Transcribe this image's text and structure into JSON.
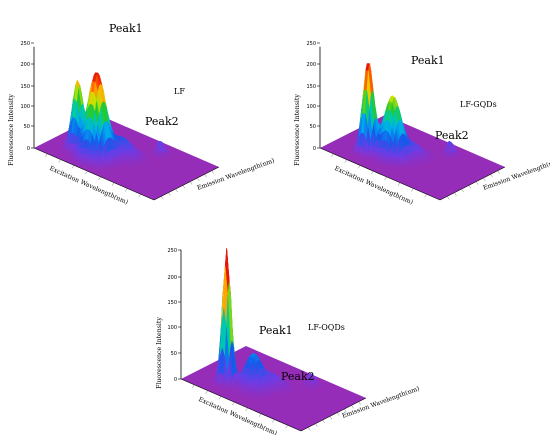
{
  "chart_data": [
    {
      "type": "surface3d",
      "title": "LF",
      "zlabel": "Fluorescence Intensity",
      "xlabel": "Excitation Wavelength(nm)",
      "ylabel": "Emission Wavelength(nm)",
      "zlim": [
        0,
        250
      ],
      "zticks": [
        "0",
        "50",
        "100",
        "150",
        "200",
        "250"
      ],
      "annotations": [
        "Peak1",
        "Peak2"
      ],
      "peaks": [
        {
          "u": 0.36,
          "v": 0.3,
          "z": 210,
          "su": 0.06,
          "sv": 0.09
        },
        {
          "u": 0.2,
          "v": 0.3,
          "z": 165,
          "su": 0.035,
          "sv": 0.05
        },
        {
          "u": 0.46,
          "v": 0.52,
          "z": 40,
          "su": 0.07,
          "sv": 0.08
        },
        {
          "u": 0.62,
          "v": 0.8,
          "z": 35,
          "su": 0.02,
          "sv": 0.04
        }
      ]
    },
    {
      "type": "surface3d",
      "title": "LF-GQDs",
      "zlabel": "Fluorescence Intensity",
      "xlabel": "Excitation Wavelength(nm)",
      "ylabel": "Emission Wavelength(nm)",
      "zlim": [
        0,
        250
      ],
      "zticks": [
        "0",
        "50",
        "100",
        "150",
        "200",
        "250"
      ],
      "annotations": [
        "Peak1",
        "Peak2"
      ],
      "peaks": [
        {
          "u": 0.25,
          "v": 0.28,
          "z": 225,
          "su": 0.035,
          "sv": 0.05
        },
        {
          "u": 0.4,
          "v": 0.38,
          "z": 150,
          "su": 0.06,
          "sv": 0.08
        },
        {
          "u": 0.48,
          "v": 0.56,
          "z": 25,
          "su": 0.06,
          "sv": 0.07
        },
        {
          "u": 0.64,
          "v": 0.82,
          "z": 35,
          "su": 0.02,
          "sv": 0.04
        }
      ]
    },
    {
      "type": "surface3d",
      "title": "LF-OQDs",
      "zlabel": "Fluorescence Intensity",
      "xlabel": "Excitation Wavelength(nm)",
      "ylabel": "Emission Wavelength(nm)",
      "zlim": [
        0,
        250
      ],
      "zticks": [
        "0",
        "50",
        "100",
        "150",
        "200",
        "250"
      ],
      "annotations": [
        "Peak1",
        "Peak2"
      ],
      "peaks": [
        {
          "u": 0.24,
          "v": 0.26,
          "z": 260,
          "su": 0.028,
          "sv": 0.04
        },
        {
          "u": 0.4,
          "v": 0.38,
          "z": 65,
          "su": 0.06,
          "sv": 0.08
        },
        {
          "u": 0.48,
          "v": 0.55,
          "z": 20,
          "su": 0.06,
          "sv": 0.07
        },
        {
          "u": 0.64,
          "v": 0.82,
          "z": 25,
          "su": 0.02,
          "sv": 0.04
        }
      ]
    }
  ]
}
